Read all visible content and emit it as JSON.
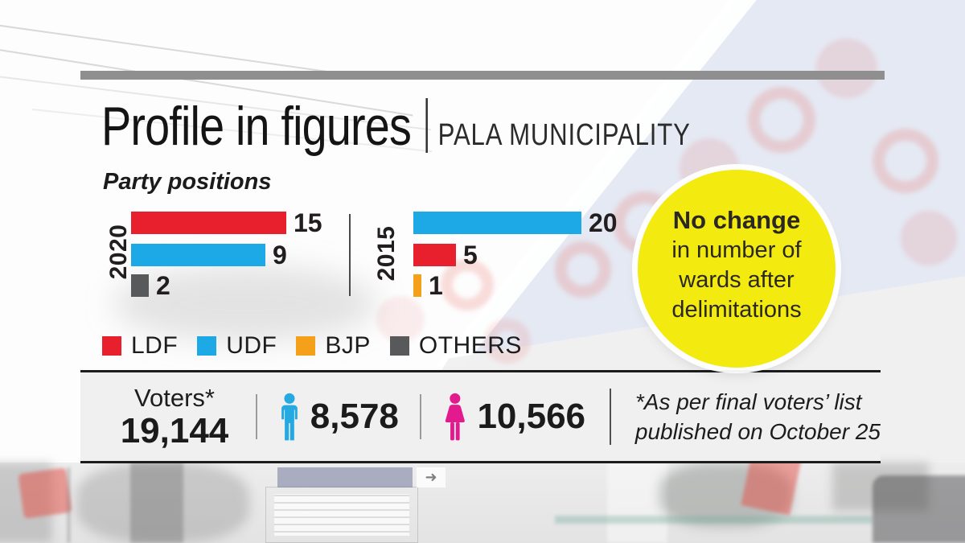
{
  "header": {
    "title": "Profile in figures",
    "subtitle": "PALA MUNICIPALITY",
    "section_label": "Party positions"
  },
  "callout": {
    "bg_color": "#f3ea10",
    "line1": "No change",
    "line2": "in number of",
    "line3": "wards after",
    "line4": "delimitations"
  },
  "chart_data": {
    "type": "bar",
    "orientation": "horizontal",
    "title": "Party positions",
    "groups": [
      {
        "label": "2020",
        "bars": [
          {
            "party": "LDF",
            "value": 15,
            "color": "#e8202e"
          },
          {
            "party": "UDF",
            "value": 9,
            "color": "#1ca9e5"
          },
          {
            "party": "OTHERS",
            "value": 2,
            "color": "#58595b"
          }
        ]
      },
      {
        "label": "2015",
        "bars": [
          {
            "party": "UDF",
            "value": 20,
            "color": "#1ca9e5"
          },
          {
            "party": "LDF",
            "value": 5,
            "color": "#e8202e"
          },
          {
            "party": "BJP",
            "value": 1,
            "color": "#f5a01b"
          }
        ]
      }
    ],
    "legend": [
      {
        "label": "LDF",
        "color": "#e8202e"
      },
      {
        "label": "UDF",
        "color": "#1ca9e5"
      },
      {
        "label": "BJP",
        "color": "#f5a01b"
      },
      {
        "label": "OTHERS",
        "color": "#58595b"
      }
    ]
  },
  "voters": {
    "label": "Voters*",
    "total": "19,144",
    "male_count": "8,578",
    "female_count": "10,566",
    "male_icon_color": "#25a9e0",
    "female_icon_color": "#e31a8d",
    "note_line1": "*As per final voters’ list",
    "note_line2": "published on October 25"
  }
}
